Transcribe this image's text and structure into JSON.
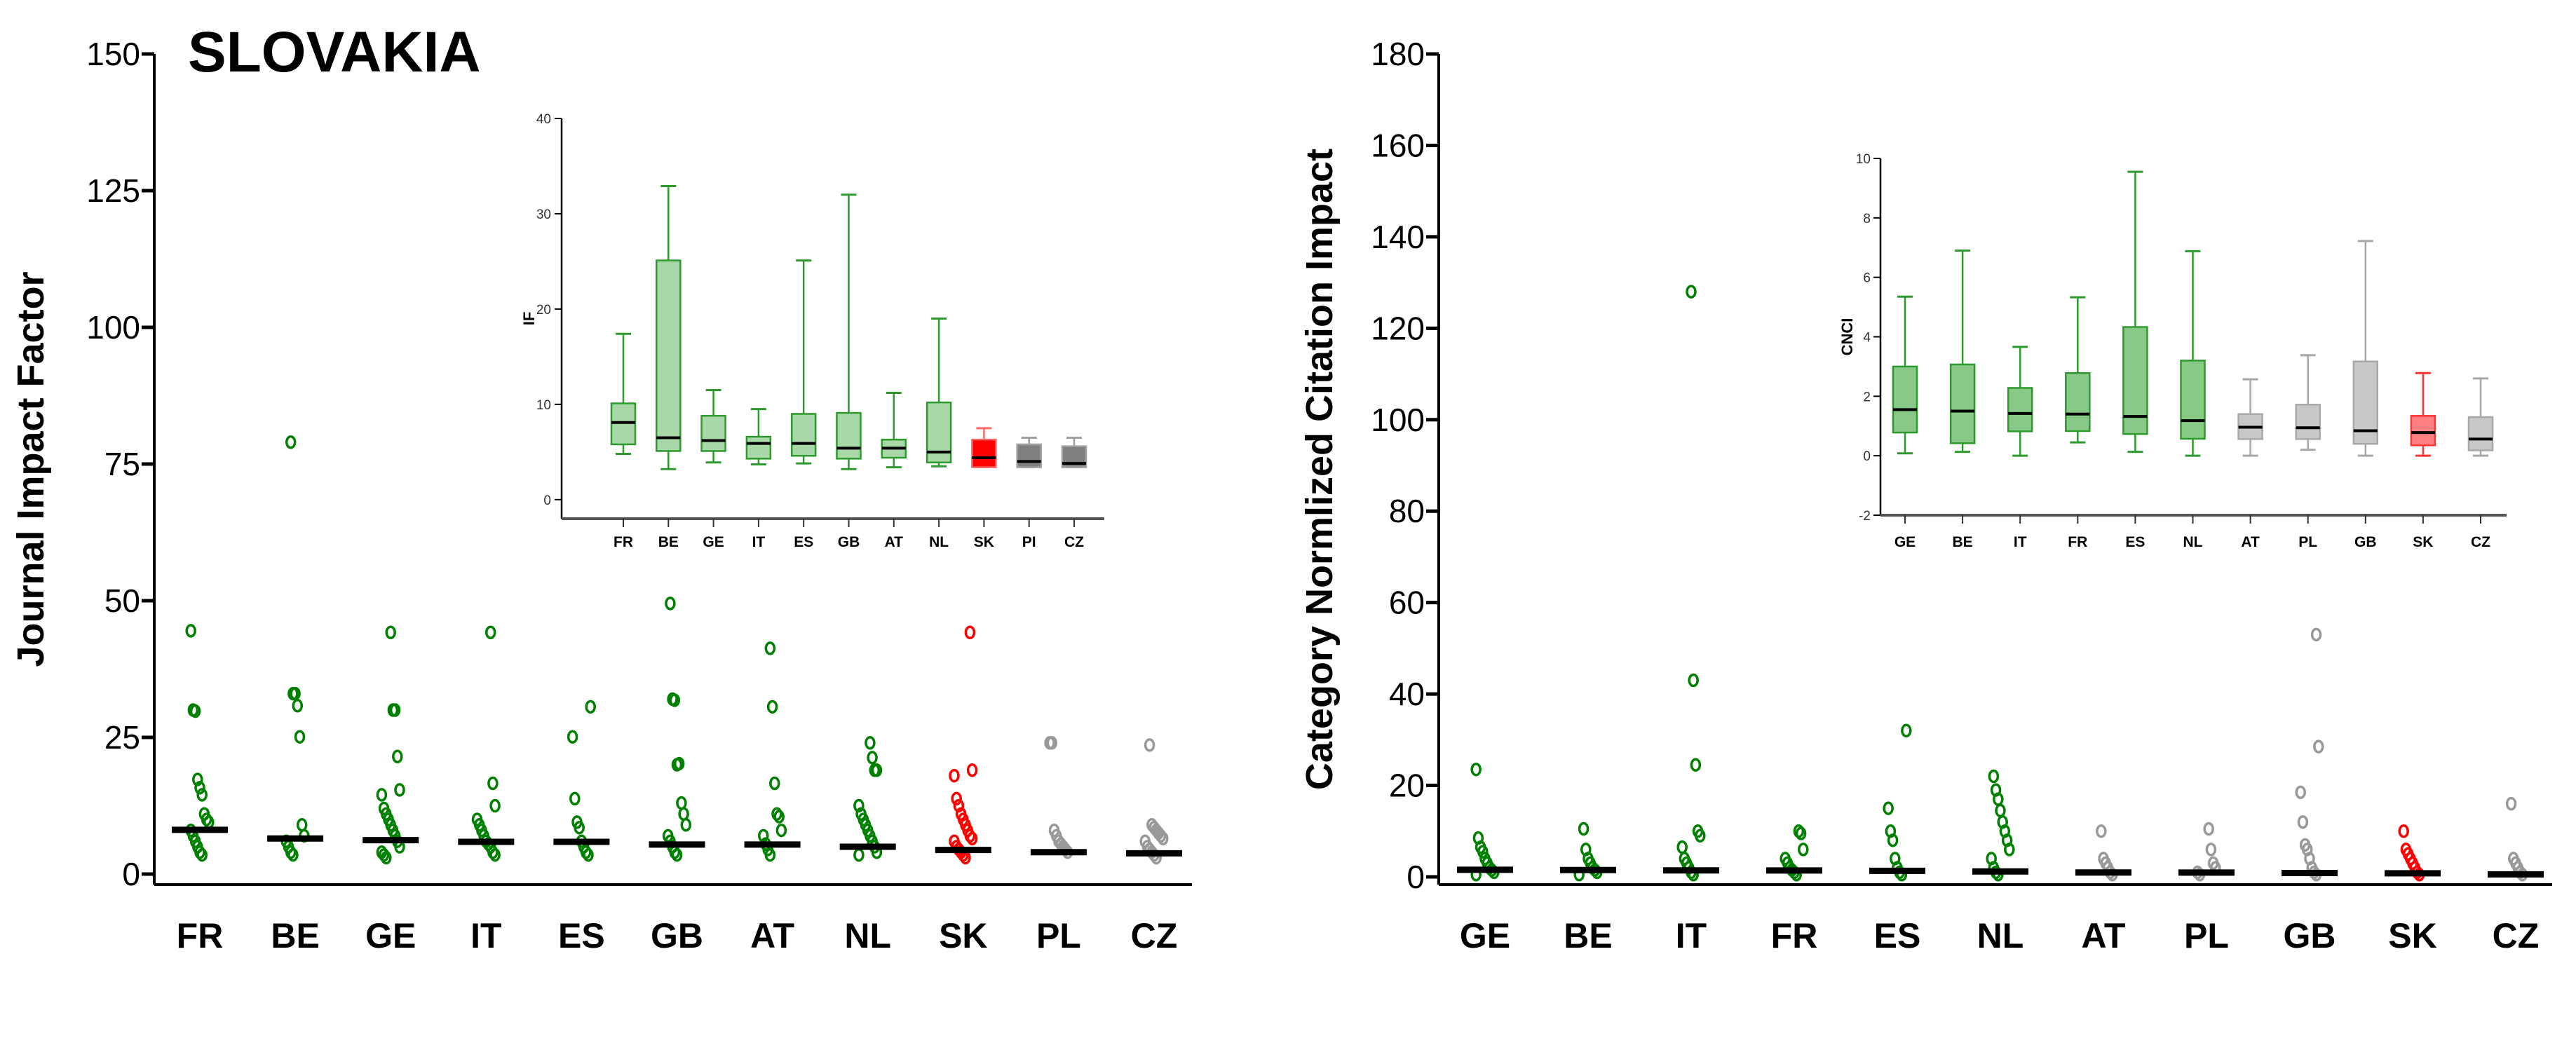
{
  "title": "SLOVAKIA",
  "colors": {
    "green": "#008000",
    "red": "#ff0000",
    "grey": "#999999",
    "black": "#000000"
  },
  "chart_data": [
    {
      "id": "if-main",
      "type": "scatter",
      "title": "SLOVAKIA",
      "ylabel": "Journal Impact Factor",
      "ylim": [
        0,
        150
      ],
      "yticks": [
        0,
        25,
        50,
        75,
        100,
        125,
        150
      ],
      "categories": [
        "FR",
        "BE",
        "GE",
        "IT",
        "ES",
        "GB",
        "AT",
        "NL",
        "SK",
        "PL",
        "CZ"
      ],
      "groups": [
        "green",
        "green",
        "green",
        "green",
        "green",
        "green",
        "green",
        "green",
        "red",
        "grey",
        "grey"
      ],
      "medians": [
        8.1,
        6.5,
        6.2,
        5.9,
        5.9,
        5.4,
        5.4,
        5.0,
        4.4,
        4.0,
        3.8
      ],
      "points": [
        [
          44.5,
          30,
          29.8,
          17.3,
          15.8,
          14.5,
          11,
          10,
          9.5,
          8,
          7,
          6,
          5,
          4,
          3.5
        ],
        [
          79,
          33,
          33,
          30.8,
          25.1,
          9,
          7,
          6,
          5,
          4,
          3.5
        ],
        [
          44.2,
          30,
          30,
          21.5,
          15.4,
          14.5,
          12,
          11,
          10,
          9,
          8,
          7,
          6,
          5,
          4,
          3.5,
          3
        ],
        [
          44.2,
          16.6,
          12.5,
          10,
          9,
          8,
          7,
          6,
          5.5,
          5,
          4,
          3.5
        ],
        [
          30.6,
          25.1,
          13.8,
          9.5,
          8.5,
          6,
          5,
          4,
          3.5
        ],
        [
          49.5,
          32,
          31.8,
          20,
          20.2,
          13,
          11,
          9,
          7,
          6,
          5,
          4,
          3.5
        ],
        [
          41.3,
          30.6,
          16.6,
          11,
          10.5,
          8,
          7,
          5.5,
          4.5,
          3.5
        ],
        [
          24,
          21.3,
          19,
          19,
          12.5,
          11,
          10,
          9,
          8,
          7,
          6,
          5,
          4,
          3.5
        ],
        [
          44.2,
          19,
          18,
          13.8,
          12.5,
          11,
          10,
          9,
          8,
          7,
          6.5,
          6,
          5,
          4.5,
          4,
          3.5,
          3
        ],
        [
          24,
          24,
          8,
          7,
          6,
          5.5,
          5,
          4.5,
          4
        ],
        [
          23.6,
          9,
          8.5,
          8,
          7.5,
          7,
          6.5,
          6,
          5,
          4.5,
          4,
          3.5,
          3
        ]
      ]
    },
    {
      "id": "if-inset",
      "type": "box",
      "ylabel": "IF",
      "ylim": [
        -2,
        40
      ],
      "yticks": [
        0,
        10,
        20,
        30,
        40
      ],
      "categories": [
        "FR",
        "BE",
        "GE",
        "IT",
        "ES",
        "GB",
        "AT",
        "NL",
        "SK",
        "PI",
        "CZ"
      ],
      "groups": [
        "green",
        "green",
        "green",
        "green",
        "green",
        "green",
        "green",
        "green",
        "red",
        "darkgrey",
        "darkgrey"
      ],
      "boxes": [
        {
          "max": 17.4,
          "q3": 10.1,
          "median": 8.1,
          "q1": 5.8,
          "min": 4.8
        },
        {
          "max": 32.9,
          "q3": 25.1,
          "median": 6.5,
          "q1": 5.1,
          "min": 3.2
        },
        {
          "max": 11.5,
          "q3": 8.8,
          "median": 6.2,
          "q1": 5.1,
          "min": 3.9
        },
        {
          "max": 9.5,
          "q3": 6.6,
          "median": 5.9,
          "q1": 4.3,
          "min": 3.7
        },
        {
          "max": 25.1,
          "q3": 9.0,
          "median": 5.9,
          "q1": 4.6,
          "min": 3.8
        },
        {
          "max": 32.0,
          "q3": 9.1,
          "median": 5.4,
          "q1": 4.3,
          "min": 3.2
        },
        {
          "max": 11.2,
          "q3": 6.3,
          "median": 5.4,
          "q1": 4.4,
          "min": 3.4
        },
        {
          "max": 19.0,
          "q3": 10.2,
          "median": 5.0,
          "q1": 3.9,
          "min": 3.5
        },
        {
          "max": 7.5,
          "q3": 6.3,
          "median": 4.4,
          "q1": 3.4,
          "min": 3.4
        },
        {
          "max": 6.5,
          "q3": 5.8,
          "median": 4.0,
          "q1": 3.4,
          "min": 3.4
        },
        {
          "max": 6.5,
          "q3": 5.6,
          "median": 3.8,
          "q1": 3.4,
          "min": 3.4
        }
      ]
    },
    {
      "id": "cnci-main",
      "type": "scatter",
      "ylabel": "Category Normlized Citation Impact",
      "ylim": [
        0,
        180
      ],
      "yticks": [
        0,
        20,
        40,
        60,
        80,
        100,
        120,
        140,
        160,
        180
      ],
      "categories": [
        "GE",
        "BE",
        "IT",
        "FR",
        "ES",
        "NL",
        "AT",
        "PL",
        "GB",
        "SK",
        "CZ"
      ],
      "groups": [
        "green",
        "green",
        "green",
        "green",
        "green",
        "green",
        "grey",
        "grey",
        "grey",
        "red",
        "grey"
      ],
      "medians": [
        1.55,
        1.5,
        1.42,
        1.4,
        1.32,
        1.18,
        0.96,
        0.94,
        0.84,
        0.78,
        0.56
      ],
      "points": [
        [
          23.5,
          8.5,
          6.5,
          5.5,
          4,
          3,
          2,
          1.5,
          1,
          0.5
        ],
        [
          10.5,
          6,
          4,
          3,
          2,
          1.5,
          1,
          0.5
        ],
        [
          128,
          43,
          24.5,
          10,
          9,
          6.5,
          4,
          3,
          2,
          1,
          0.5
        ],
        [
          10,
          9.5,
          6,
          4,
          3,
          2,
          1.5,
          1,
          0.5
        ],
        [
          32,
          15,
          10,
          8,
          4,
          2,
          1,
          0.5
        ],
        [
          22,
          19,
          17,
          14.5,
          12,
          10,
          8,
          6,
          4,
          2,
          1,
          0.5
        ],
        [
          10,
          4,
          3,
          2,
          1,
          0.5
        ],
        [
          10.5,
          6,
          3,
          2,
          1,
          0.5
        ],
        [
          53,
          28.5,
          18.5,
          12,
          7,
          6,
          4,
          2,
          1,
          0.5
        ],
        [
          10,
          6,
          5,
          4,
          3,
          2,
          1,
          0.5
        ],
        [
          16,
          4,
          3,
          2,
          1,
          0.5
        ]
      ]
    },
    {
      "id": "cnci-inset",
      "type": "box",
      "ylabel": "CNCI",
      "ylim": [
        -2,
        10
      ],
      "yticks": [
        -2,
        0,
        2,
        4,
        6,
        8,
        10
      ],
      "categories": [
        "GE",
        "BE",
        "IT",
        "FR",
        "ES",
        "NL",
        "AT",
        "PL",
        "GB",
        "SK",
        "CZ"
      ],
      "groups": [
        "green",
        "green",
        "green",
        "green",
        "green",
        "green",
        "lightgrey",
        "lightgrey",
        "lightgrey",
        "lightred",
        "lightgrey"
      ],
      "boxes": [
        {
          "max": 5.35,
          "q3": 3.0,
          "median": 1.55,
          "q1": 0.78,
          "min": 0.08
        },
        {
          "max": 6.9,
          "q3": 3.07,
          "median": 1.5,
          "q1": 0.42,
          "min": 0.13
        },
        {
          "max": 3.66,
          "q3": 2.28,
          "median": 1.42,
          "q1": 0.82,
          "min": 0.0
        },
        {
          "max": 5.33,
          "q3": 2.78,
          "median": 1.4,
          "q1": 0.83,
          "min": 0.45
        },
        {
          "max": 9.55,
          "q3": 4.33,
          "median": 1.32,
          "q1": 0.73,
          "min": 0.13
        },
        {
          "max": 6.88,
          "q3": 3.2,
          "median": 1.18,
          "q1": 0.57,
          "min": 0.0
        },
        {
          "max": 2.57,
          "q3": 1.4,
          "median": 0.96,
          "q1": 0.56,
          "min": 0.0
        },
        {
          "max": 3.38,
          "q3": 1.72,
          "median": 0.94,
          "q1": 0.56,
          "min": 0.2
        },
        {
          "max": 7.22,
          "q3": 3.17,
          "median": 0.84,
          "q1": 0.4,
          "min": 0.0
        },
        {
          "max": 2.78,
          "q3": 1.34,
          "median": 0.78,
          "q1": 0.35,
          "min": 0.0
        },
        {
          "max": 2.6,
          "q3": 1.3,
          "median": 0.56,
          "q1": 0.18,
          "min": 0.0
        }
      ]
    }
  ]
}
